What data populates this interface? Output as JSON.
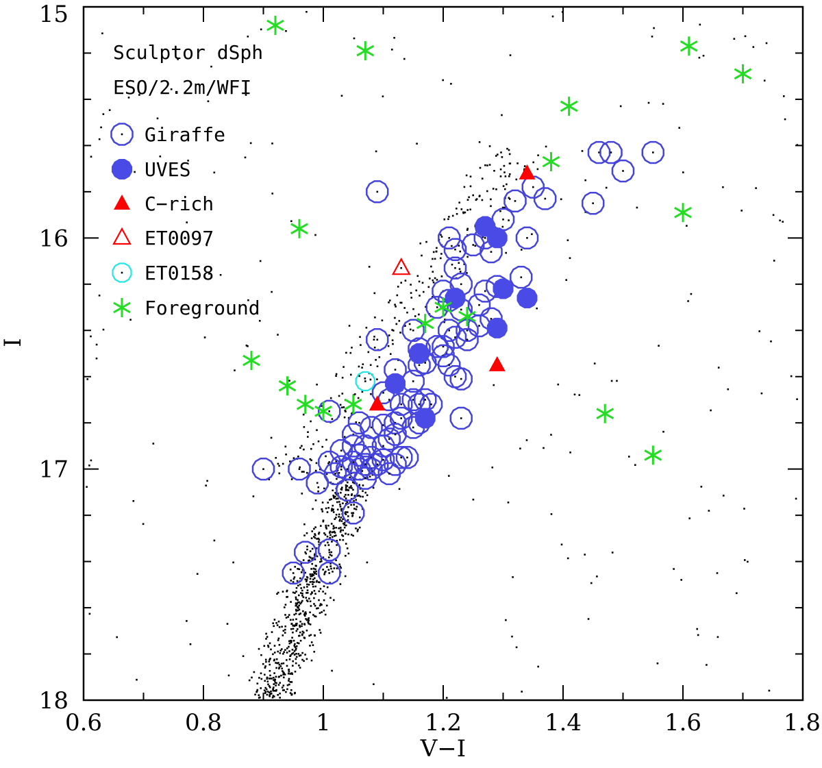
{
  "chart_data": {
    "type": "scatter",
    "xlabel": "V−I",
    "ylabel": "I",
    "xlim": [
      0.6,
      1.8
    ],
    "ylim": [
      18,
      15
    ],
    "y_inverted": true,
    "x_ticks": [
      0.6,
      0.8,
      1,
      1.2,
      1.4,
      1.6,
      1.8
    ],
    "x_tick_labels": [
      "0.6",
      "0.8",
      "1",
      "1.2",
      "1.4",
      "1.6",
      "1.8"
    ],
    "y_ticks": [
      15,
      16,
      17,
      18
    ],
    "y_tick_labels": [
      "15",
      "16",
      "17",
      "18"
    ],
    "annotations": [
      "Sculptor dSph",
      "ESO/2.2m/WFI"
    ],
    "colors": {
      "giraffe": "#4444dd",
      "uves": "#4a4ae6",
      "crich": "#ff0000",
      "et0097": "#ff0000",
      "et0158": "#22e6e6",
      "foreground": "#22dd22",
      "field": "#000000"
    },
    "legend": [
      {
        "key": "giraffe",
        "label": "Giraffe"
      },
      {
        "key": "uves",
        "label": "UVES"
      },
      {
        "key": "crich",
        "label": "C−rich"
      },
      {
        "key": "et0097",
        "label": "ET0097"
      },
      {
        "key": "et0158",
        "label": "ET0158"
      },
      {
        "key": "foreground",
        "label": "Foreground"
      }
    ],
    "series": [
      {
        "name": "Giraffe",
        "key": "giraffe",
        "points": [
          [
            1.09,
            15.8
          ],
          [
            1.22,
            16.05
          ],
          [
            1.21,
            16.0
          ],
          [
            1.25,
            16.03
          ],
          [
            1.27,
            16.0
          ],
          [
            1.3,
            15.92
          ],
          [
            1.28,
            16.06
          ],
          [
            1.34,
            16.0
          ],
          [
            1.32,
            15.84
          ],
          [
            1.35,
            15.78
          ],
          [
            1.37,
            15.83
          ],
          [
            1.45,
            15.85
          ],
          [
            1.46,
            15.63
          ],
          [
            1.48,
            15.63
          ],
          [
            1.5,
            15.71
          ],
          [
            1.55,
            15.63
          ],
          [
            1.22,
            16.13
          ],
          [
            1.23,
            16.2
          ],
          [
            1.2,
            16.23
          ],
          [
            1.21,
            16.27
          ],
          [
            1.19,
            16.3
          ],
          [
            1.23,
            16.31
          ],
          [
            1.26,
            16.29
          ],
          [
            1.27,
            16.23
          ],
          [
            1.29,
            16.21
          ],
          [
            1.33,
            16.17
          ],
          [
            1.28,
            16.35
          ],
          [
            1.26,
            16.38
          ],
          [
            1.24,
            16.4
          ],
          [
            1.21,
            16.4
          ],
          [
            1.22,
            16.43
          ],
          [
            1.2,
            16.47
          ],
          [
            1.24,
            16.44
          ],
          [
            1.15,
            16.4
          ],
          [
            1.16,
            16.48
          ],
          [
            1.19,
            16.47
          ],
          [
            1.2,
            16.51
          ],
          [
            1.21,
            16.55
          ],
          [
            1.22,
            16.6
          ],
          [
            1.23,
            16.61
          ],
          [
            1.17,
            16.54
          ],
          [
            1.16,
            16.55
          ],
          [
            1.15,
            16.62
          ],
          [
            1.12,
            16.57
          ],
          [
            1.09,
            16.44
          ],
          [
            1.1,
            16.67
          ],
          [
            1.11,
            16.7
          ],
          [
            1.13,
            16.72
          ],
          [
            1.15,
            16.7
          ],
          [
            1.16,
            16.72
          ],
          [
            1.17,
            16.7
          ],
          [
            1.18,
            16.72
          ],
          [
            1.13,
            16.78
          ],
          [
            1.16,
            16.8
          ],
          [
            1.15,
            16.82
          ],
          [
            1.23,
            16.78
          ],
          [
            1.01,
            16.75
          ],
          [
            1.06,
            16.8
          ],
          [
            1.08,
            16.82
          ],
          [
            1.1,
            16.81
          ],
          [
            1.12,
            16.8
          ],
          [
            1.12,
            16.85
          ],
          [
            1.11,
            16.87
          ],
          [
            1.1,
            16.9
          ],
          [
            1.07,
            16.9
          ],
          [
            1.05,
            16.85
          ],
          [
            1.05,
            16.9
          ],
          [
            1.03,
            16.92
          ],
          [
            1.06,
            16.94
          ],
          [
            1.08,
            16.95
          ],
          [
            1.1,
            16.96
          ],
          [
            1.13,
            16.95
          ],
          [
            1.09,
            16.98
          ],
          [
            1.07,
            16.98
          ],
          [
            1.05,
            16.97
          ],
          [
            1.03,
            16.99
          ],
          [
            1.04,
            17.0
          ],
          [
            1.06,
            17.0
          ],
          [
            1.08,
            17.0
          ],
          [
            1.12,
            16.98
          ],
          [
            1.14,
            16.95
          ],
          [
            1.01,
            16.97
          ],
          [
            1.02,
            17.02
          ],
          [
            0.9,
            17.0
          ],
          [
            0.96,
            17.0
          ],
          [
            0.99,
            17.06
          ],
          [
            1.07,
            17.04
          ],
          [
            1.11,
            17.02
          ],
          [
            1.04,
            17.09
          ],
          [
            1.05,
            17.19
          ],
          [
            0.97,
            17.36
          ],
          [
            1.01,
            17.35
          ],
          [
            0.95,
            17.45
          ],
          [
            1.01,
            17.45
          ]
        ]
      },
      {
        "name": "UVES",
        "key": "uves",
        "points": [
          [
            1.27,
            15.95
          ],
          [
            1.29,
            16.0
          ],
          [
            1.3,
            16.22
          ],
          [
            1.34,
            16.26
          ],
          [
            1.22,
            16.26
          ],
          [
            1.29,
            16.39
          ],
          [
            1.16,
            16.5
          ],
          [
            1.12,
            16.63
          ],
          [
            1.17,
            16.78
          ]
        ]
      },
      {
        "name": "C−rich",
        "key": "crich",
        "points": [
          [
            1.34,
            15.72
          ],
          [
            1.29,
            16.55
          ],
          [
            1.09,
            16.72
          ]
        ]
      },
      {
        "name": "ET0097",
        "key": "et0097",
        "points": [
          [
            1.13,
            16.13
          ]
        ]
      },
      {
        "name": "ET0158",
        "key": "et0158",
        "points": [
          [
            1.07,
            16.62
          ]
        ]
      },
      {
        "name": "Foreground",
        "key": "foreground",
        "points": [
          [
            0.92,
            15.08
          ],
          [
            1.07,
            15.19
          ],
          [
            1.61,
            15.17
          ],
          [
            1.7,
            15.29
          ],
          [
            1.41,
            15.43
          ],
          [
            1.38,
            15.67
          ],
          [
            1.6,
            15.89
          ],
          [
            0.96,
            15.96
          ],
          [
            1.17,
            16.37
          ],
          [
            1.2,
            16.3
          ],
          [
            1.24,
            16.34
          ],
          [
            0.88,
            16.53
          ],
          [
            0.94,
            16.64
          ],
          [
            0.97,
            16.72
          ],
          [
            1.0,
            16.75
          ],
          [
            1.05,
            16.72
          ],
          [
            1.47,
            16.76
          ],
          [
            1.55,
            16.94
          ]
        ]
      }
    ]
  }
}
